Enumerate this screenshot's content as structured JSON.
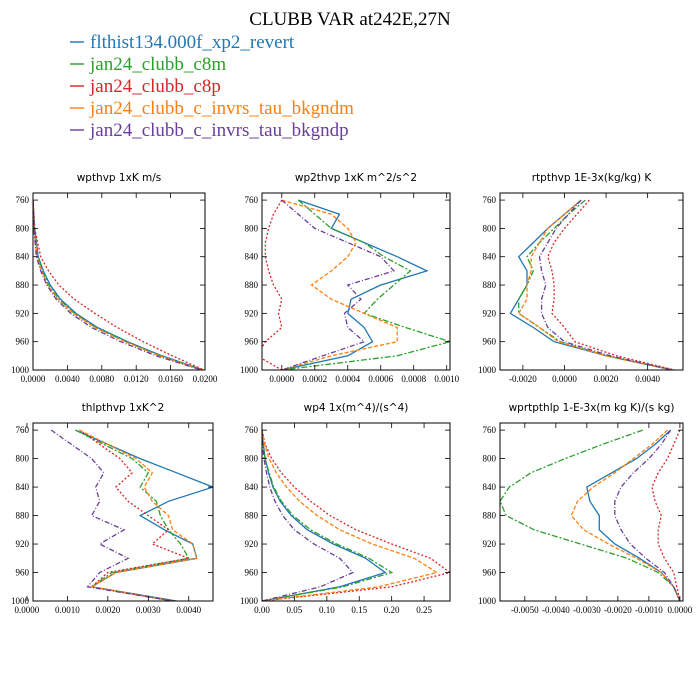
{
  "title": "CLUBB VAR at242E,27N",
  "legend": [
    {
      "label": "flthist134.000f_xp2_revert",
      "color": "#1f77b4"
    },
    {
      "label": "jan24_clubb_c8m",
      "color": "#2ca02c"
    },
    {
      "label": "jan24_clubb_c8p",
      "color": "#d62728"
    },
    {
      "label": "jan24_clubb_c_invrs_tau_bkgndm",
      "color": "#ff7f0e"
    },
    {
      "label": "jan24_clubb_c_invrs_tau_bkgndp",
      "color": "#6a3d9a"
    }
  ],
  "chart_data": [
    {
      "type": "line",
      "title": "wpthvp   1xK m/s",
      "xlim": [
        0,
        0.02
      ],
      "ylim": [
        1000,
        750
      ],
      "xticks": [
        "0.0000",
        "0.0040",
        "0.0080",
        "0.0120",
        "0.0160",
        "0.0200"
      ],
      "xtick_values": [
        0,
        0.004,
        0.008,
        0.012,
        0.016,
        0.02
      ],
      "yticks": [
        "760",
        "800",
        "840",
        "880",
        "920",
        "960",
        "1000"
      ],
      "ytick_values": [
        760,
        800,
        840,
        880,
        920,
        960,
        1000
      ],
      "levels": [
        760,
        800,
        840,
        860,
        880,
        900,
        920,
        940,
        960,
        980,
        1000
      ],
      "series": [
        {
          "name": "flthist134.000f_xp2_revert",
          "values": [
            0.0,
            0.0002,
            0.0006,
            0.0012,
            0.002,
            0.0032,
            0.005,
            0.0075,
            0.011,
            0.015,
            0.0198
          ]
        },
        {
          "name": "jan24_clubb_c8m",
          "values": [
            0.0,
            0.0001,
            0.0005,
            0.0011,
            0.0018,
            0.003,
            0.0048,
            0.0073,
            0.0108,
            0.0148,
            0.0197
          ]
        },
        {
          "name": "jan24_clubb_c8p",
          "values": [
            0.0,
            0.0002,
            0.0009,
            0.0018,
            0.003,
            0.0048,
            0.0072,
            0.0098,
            0.0128,
            0.0162,
            0.0199
          ]
        },
        {
          "name": "jan24_clubb_c_invrs_tau_bkgndm",
          "values": [
            0.0,
            0.0001,
            0.0005,
            0.001,
            0.0017,
            0.0029,
            0.0047,
            0.0072,
            0.0107,
            0.0147,
            0.0197
          ]
        },
        {
          "name": "jan24_clubb_c_invrs_tau_bkgndp",
          "values": [
            0.0,
            0.0001,
            0.0004,
            0.0009,
            0.0016,
            0.0027,
            0.0044,
            0.0068,
            0.0102,
            0.0143,
            0.0196
          ]
        }
      ]
    },
    {
      "type": "line",
      "title": "wp2thvp   1xK m^2/s^2",
      "xlim": [
        -0.00012,
        0.00102
      ],
      "ylim": [
        1000,
        750
      ],
      "xticks": [
        "0.0000",
        "0.0002",
        "0.0004",
        "0.0006",
        "0.0008",
        "0.0010"
      ],
      "xtick_values": [
        0,
        0.0002,
        0.0004,
        0.0006,
        0.0008,
        0.001
      ],
      "yticks": [
        "760",
        "800",
        "840",
        "880",
        "920",
        "960",
        "1000"
      ],
      "ytick_values": [
        760,
        800,
        840,
        880,
        920,
        960,
        1000
      ],
      "levels": [
        760,
        780,
        800,
        820,
        840,
        860,
        880,
        900,
        920,
        940,
        960,
        980,
        1000
      ],
      "series": [
        {
          "name": "flthist134.000f_xp2_revert",
          "values": [
            0.0001,
            0.00035,
            0.0003,
            0.0005,
            0.0007,
            0.00088,
            0.0006,
            0.00042,
            0.0004,
            0.0005,
            0.00055,
            0.0004,
            0.0
          ]
        },
        {
          "name": "jan24_clubb_c8m",
          "values": [
            0.0001,
            0.0002,
            0.0003,
            0.0005,
            0.00062,
            0.00078,
            0.00068,
            0.00058,
            0.0005,
            0.00075,
            0.00102,
            0.0007,
            0.0
          ]
        },
        {
          "name": "jan24_clubb_c8p",
          "values": [
            0.0,
            -5e-05,
            -8e-05,
            -0.0001,
            -0.0001,
            -8e-05,
            -5e-05,
            0.0,
            -2e-05,
            0.0,
            -0.0001,
            -0.00015,
            0.0
          ]
        },
        {
          "name": "jan24_clubb_c_invrs_tau_bkgndm",
          "values": [
            0.0,
            0.0003,
            0.0004,
            0.00045,
            0.0004,
            0.0003,
            0.00018,
            0.0003,
            0.0005,
            0.0007,
            0.0007,
            0.0003,
            0.0
          ]
        },
        {
          "name": "jan24_clubb_c_invrs_tau_bkgndp",
          "values": [
            0.0,
            0.0001,
            0.0002,
            0.0004,
            0.0006,
            0.00068,
            0.0004,
            0.00048,
            0.00038,
            0.0004,
            0.0005,
            0.00025,
            0.0
          ]
        }
      ]
    },
    {
      "type": "line",
      "title": "rtpthvp   1E-3x(kg/kg) K",
      "xlim": [
        -0.0031,
        0.0057
      ],
      "ylim": [
        1000,
        750
      ],
      "xticks": [
        "-0.0020",
        "0.0000",
        "0.0020",
        "0.0040"
      ],
      "xtick_values": [
        -0.002,
        0,
        0.002,
        0.004
      ],
      "yticks": [
        "760",
        "800",
        "840",
        "880",
        "920",
        "960",
        "1000"
      ],
      "ytick_values": [
        760,
        800,
        840,
        880,
        920,
        960,
        1000
      ],
      "levels": [
        760,
        780,
        800,
        820,
        840,
        860,
        880,
        900,
        920,
        940,
        960,
        980,
        1000
      ],
      "series": [
        {
          "name": "flthist134.000f_xp2_revert",
          "values": [
            0.0008,
            0.0,
            -0.0008,
            -0.0015,
            -0.0022,
            -0.0018,
            -0.0018,
            -0.0022,
            -0.0026,
            -0.0015,
            -0.0005,
            0.002,
            0.0052
          ]
        },
        {
          "name": "jan24_clubb_c8m",
          "values": [
            0.001,
            0.0002,
            -0.0005,
            -0.0012,
            -0.0018,
            -0.0015,
            -0.0018,
            -0.0022,
            -0.0022,
            -0.0012,
            -0.0002,
            0.002,
            0.0052
          ]
        },
        {
          "name": "jan24_clubb_c8p",
          "values": [
            0.0012,
            0.0006,
            0.0,
            -0.0005,
            -0.0008,
            -0.0006,
            -0.0005,
            -0.0005,
            -0.0006,
            0.0,
            0.0005,
            0.0025,
            0.0053
          ]
        },
        {
          "name": "jan24_clubb_c_invrs_tau_bkgndm",
          "values": [
            0.0008,
            0.0,
            -0.0008,
            -0.0012,
            -0.0016,
            -0.0016,
            -0.0018,
            -0.0018,
            -0.0022,
            -0.0012,
            -0.0003,
            0.002,
            0.0052
          ]
        },
        {
          "name": "jan24_clubb_c_invrs_tau_bkgndp",
          "values": [
            0.0008,
            0.0002,
            -0.0004,
            -0.0008,
            -0.0012,
            -0.0011,
            -0.0009,
            -0.0011,
            -0.0011,
            -0.0008,
            0.0,
            0.0022,
            0.0052
          ]
        }
      ]
    },
    {
      "type": "line",
      "title": "thlpthvp   1xK^2",
      "xlim": [
        0.00015,
        0.0046
      ],
      "ylim": [
        1000,
        750
      ],
      "xticks": [
        "0.0000",
        "0.0010",
        "0.0020",
        "0.0030",
        "0.0040"
      ],
      "xtick_values": [
        0,
        0.001,
        0.002,
        0.003,
        0.004
      ],
      "yticks": [
        "760",
        "800",
        "840",
        "880",
        "920",
        "960",
        "1000"
      ],
      "ytick_values": [
        760,
        800,
        840,
        880,
        920,
        960,
        1000
      ],
      "levels": [
        760,
        780,
        800,
        820,
        840,
        860,
        880,
        900,
        920,
        940,
        960,
        980,
        1000
      ],
      "series": [
        {
          "name": "flthist134.000f_xp2_revert",
          "values": [
            0.0012,
            0.002,
            0.0028,
            0.0037,
            0.0046,
            0.0035,
            0.0028,
            0.0034,
            0.0041,
            0.0042,
            0.0022,
            0.0016,
            0.0037
          ]
        },
        {
          "name": "jan24_clubb_c8m",
          "values": [
            0.0012,
            0.0019,
            0.0026,
            0.003,
            0.0028,
            0.0032,
            0.0033,
            0.0035,
            0.0038,
            0.004,
            0.0021,
            0.0016,
            0.0036
          ]
        },
        {
          "name": "jan24_clubb_c8p",
          "values": [
            0.0013,
            0.0018,
            0.0023,
            0.0026,
            0.0022,
            0.0025,
            0.003,
            0.0035,
            0.0031,
            0.004,
            0.002,
            0.0016,
            0.0036
          ]
        },
        {
          "name": "jan24_clubb_c_invrs_tau_bkgndm",
          "values": [
            0.0013,
            0.002,
            0.0027,
            0.0031,
            0.0029,
            0.0031,
            0.0035,
            0.0036,
            0.0041,
            0.0042,
            0.0022,
            0.0016,
            0.0036
          ]
        },
        {
          "name": "jan24_clubb_c_invrs_tau_bkgndp",
          "values": [
            0.0006,
            0.0011,
            0.0016,
            0.0019,
            0.0017,
            0.0018,
            0.0016,
            0.0024,
            0.0018,
            0.0025,
            0.0018,
            0.0015,
            0.0036
          ]
        }
      ]
    },
    {
      "type": "line",
      "title": "wp4   1x(m^4)/(s^4)",
      "xlim": [
        0,
        0.29
      ],
      "ylim": [
        1000,
        750
      ],
      "xticks": [
        "0.00",
        "0.05",
        "0.10",
        "0.15",
        "0.20",
        "0.25"
      ],
      "xtick_values": [
        0,
        0.05,
        0.1,
        0.15,
        0.2,
        0.25
      ],
      "yticks": [
        "760",
        "800",
        "840",
        "880",
        "920",
        "960",
        "1000"
      ],
      "ytick_values": [
        760,
        800,
        840,
        880,
        920,
        960,
        1000
      ],
      "levels": [
        760,
        780,
        800,
        820,
        840,
        860,
        880,
        900,
        920,
        940,
        960,
        980,
        1000
      ],
      "series": [
        {
          "name": "flthist134.000f_xp2_revert",
          "values": [
            0.0,
            0.002,
            0.005,
            0.01,
            0.017,
            0.028,
            0.045,
            0.07,
            0.11,
            0.16,
            0.19,
            0.12,
            0.0
          ]
        },
        {
          "name": "jan24_clubb_c8m",
          "values": [
            0.0,
            0.002,
            0.005,
            0.011,
            0.018,
            0.03,
            0.048,
            0.075,
            0.115,
            0.165,
            0.2,
            0.125,
            0.0
          ]
        },
        {
          "name": "jan24_clubb_c8p",
          "values": [
            0.0,
            0.005,
            0.015,
            0.03,
            0.05,
            0.075,
            0.105,
            0.145,
            0.2,
            0.26,
            0.29,
            0.2,
            0.0
          ]
        },
        {
          "name": "jan24_clubb_c_invrs_tau_bkgndm",
          "values": [
            0.0,
            0.004,
            0.011,
            0.022,
            0.038,
            0.058,
            0.085,
            0.12,
            0.17,
            0.235,
            0.27,
            0.18,
            0.0
          ]
        },
        {
          "name": "jan24_clubb_c_invrs_tau_bkgndp",
          "values": [
            0.0,
            0.001,
            0.003,
            0.007,
            0.012,
            0.02,
            0.032,
            0.05,
            0.08,
            0.12,
            0.14,
            0.09,
            0.0
          ]
        }
      ]
    },
    {
      "type": "line",
      "title": "wprtpthlp   1-E-3x(m kg K)/(s kg)",
      "xlim": [
        -0.0058,
        0.0001
      ],
      "ylim": [
        1000,
        750
      ],
      "xticks": [
        "-0.0050",
        "-0.0040",
        "-0.0030",
        "-0.0020",
        "-0.0010",
        "0.0000"
      ],
      "xtick_values": [
        -0.005,
        -0.004,
        -0.003,
        -0.002,
        -0.001,
        0
      ],
      "yticks": [
        "760",
        "800",
        "840",
        "880",
        "920",
        "960",
        "1000"
      ],
      "ytick_values": [
        760,
        800,
        840,
        880,
        920,
        960,
        1000
      ],
      "levels": [
        760,
        780,
        800,
        820,
        840,
        860,
        880,
        900,
        920,
        940,
        960,
        980,
        1000
      ],
      "series": [
        {
          "name": "flthist134.000f_xp2_revert",
          "values": [
            -0.0003,
            -0.0008,
            -0.0014,
            -0.0022,
            -0.003,
            -0.0029,
            -0.0026,
            -0.0026,
            -0.0021,
            -0.0013,
            -0.0006,
            -0.0002,
            0.0
          ]
        },
        {
          "name": "jan24_clubb_c8m",
          "values": [
            -0.0012,
            -0.0025,
            -0.0037,
            -0.0048,
            -0.0055,
            -0.0058,
            -0.0056,
            -0.0047,
            -0.0032,
            -0.0017,
            -0.0007,
            -0.0002,
            0.0
          ]
        },
        {
          "name": "jan24_clubb_c8p",
          "values": [
            0.0,
            -0.0002,
            -0.0004,
            -0.0007,
            -0.0009,
            -0.0008,
            -0.0006,
            -0.0007,
            -0.0007,
            -0.0005,
            -0.0002,
            -0.0001,
            0.0
          ]
        },
        {
          "name": "jan24_clubb_c_invrs_tau_bkgndm",
          "values": [
            -0.0004,
            -0.0009,
            -0.0015,
            -0.0021,
            -0.0028,
            -0.0033,
            -0.0035,
            -0.0031,
            -0.0023,
            -0.0014,
            -0.0006,
            -0.0002,
            0.0
          ]
        },
        {
          "name": "jan24_clubb_c_invrs_tau_bkgndp",
          "values": [
            -0.0003,
            -0.0006,
            -0.001,
            -0.0015,
            -0.0019,
            -0.0021,
            -0.0021,
            -0.0019,
            -0.0016,
            -0.0011,
            -0.0005,
            -0.0002,
            0.0
          ]
        }
      ]
    }
  ]
}
